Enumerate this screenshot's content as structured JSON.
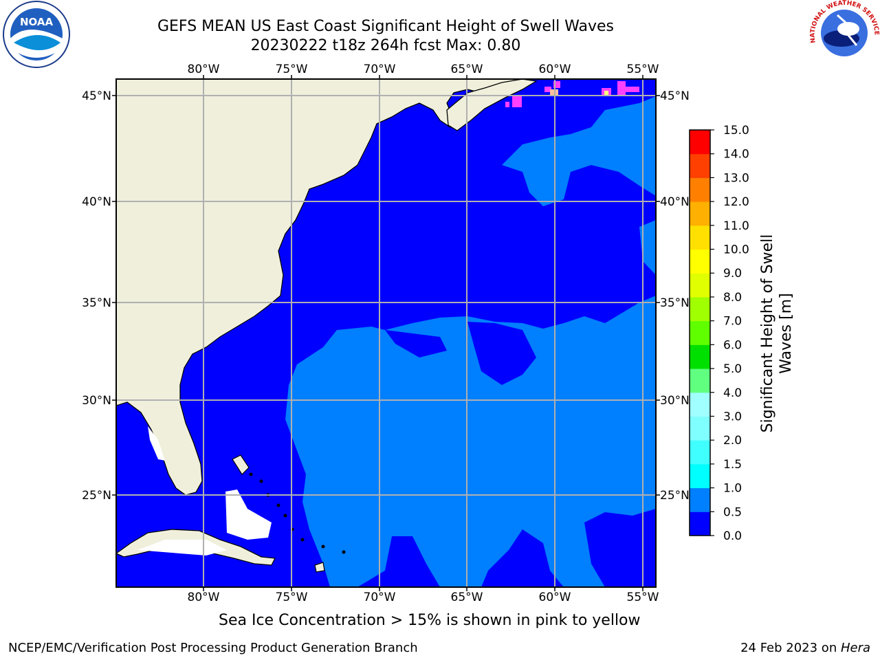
{
  "title": {
    "line1": "GEFS MEAN US East Coast Significant Height of Swell Waves",
    "line2": "20230222 t18z 264h fcst   Max: 0.80"
  },
  "note": "Sea Ice Concentration > 15% is shown in pink to yellow",
  "footer": {
    "left": "NCEP/EMC/Verification Post Processing Product Generation Branch",
    "date": "24 Feb 2023 on ",
    "machine": "Hera"
  },
  "logos": {
    "left": {
      "name": "noaa-logo",
      "text": "NOAA"
    },
    "right": {
      "name": "national-weather-service-logo",
      "text": "NATIONAL WEATHER SERVICE"
    }
  },
  "map": {
    "lon_ticks": [
      "80°W",
      "75°W",
      "70°W",
      "65°W",
      "60°W",
      "55°W"
    ],
    "lat_ticks": [
      "45°N",
      "40°N",
      "35°N",
      "30°N",
      "25°N"
    ],
    "land_color": "#efefdc",
    "water_color_0_0_5": "#0000ff",
    "water_color_0_5_1_0": "#007fff",
    "sea_ice_colors": [
      "#ff40ff",
      "#ffc0a0",
      "#ffff80"
    ]
  },
  "colorbar": {
    "title_line1": "Significant Height of Swell",
    "title_line2": "Waves [m]",
    "levels": [
      "0.0",
      "0.5",
      "1.0",
      "1.5",
      "2.0",
      "3.0",
      "4.0",
      "5.0",
      "6.0",
      "7.0",
      "8.0",
      "9.0",
      "10.0",
      "11.0",
      "12.0",
      "13.0",
      "14.0",
      "15.0"
    ],
    "colors": [
      "#0000ff",
      "#007fff",
      "#00ffff",
      "#40ffff",
      "#80ffff",
      "#a0ffff",
      "#60ff80",
      "#00e000",
      "#60ff00",
      "#a0ff00",
      "#e0ff00",
      "#ffff00",
      "#ffe000",
      "#ffb000",
      "#ff8000",
      "#ff4000",
      "#ff0000"
    ]
  }
}
